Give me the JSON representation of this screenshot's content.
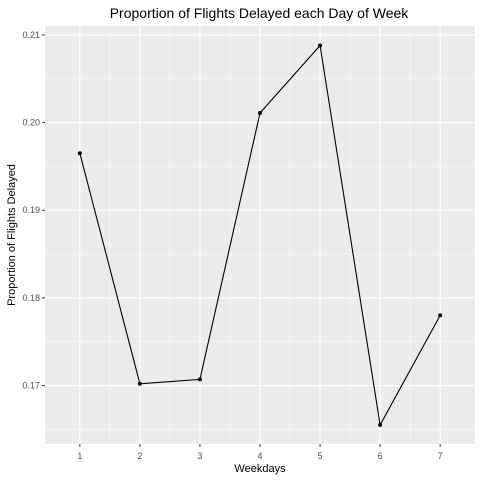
{
  "chart_data": {
    "type": "line",
    "title": "Proportion of Flights Delayed each Day of Week",
    "xlabel": "Weekdays",
    "ylabel": "Proportion of Flights Delayed",
    "x": [
      1,
      2,
      3,
      4,
      5,
      6,
      7
    ],
    "y": [
      0.1965,
      0.1702,
      0.1707,
      0.2011,
      0.2088,
      0.1655,
      0.178
    ],
    "xticks": [
      "1",
      "2",
      "3",
      "4",
      "5",
      "6",
      "7"
    ],
    "yticks": [
      "0.17",
      "0.18",
      "0.19",
      "0.20",
      "0.21"
    ],
    "xlim": [
      0.42,
      7.58
    ],
    "ylim": [
      0.16333,
      0.21102
    ],
    "grid": true,
    "colors": {
      "panel": "#ebebeb",
      "grid_major": "#ffffff",
      "line": "#000000",
      "point": "#000000"
    }
  }
}
